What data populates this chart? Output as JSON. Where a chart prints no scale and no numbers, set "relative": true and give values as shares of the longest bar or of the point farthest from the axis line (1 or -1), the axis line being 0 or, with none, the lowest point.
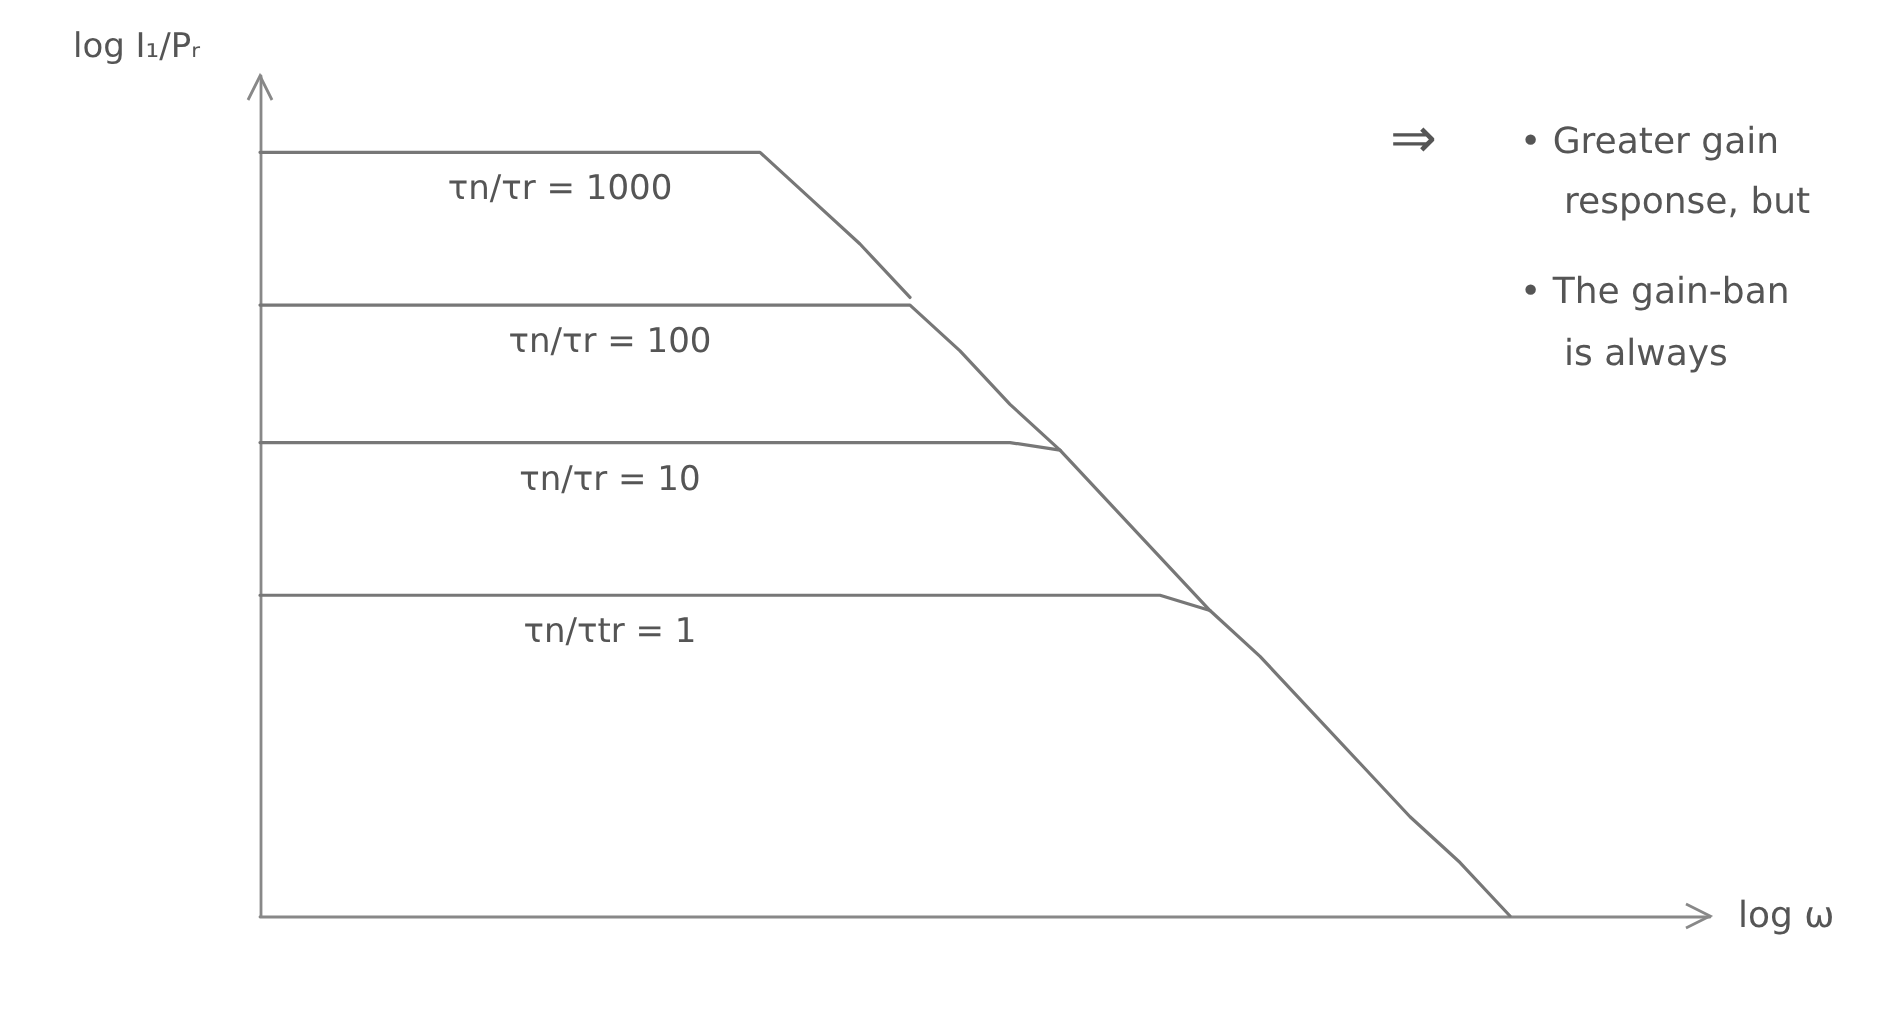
{
  "chart_data": {
    "type": "line",
    "relative": true,
    "xlabel": "log ω",
    "ylabel": "log I₁/Pᵣ",
    "categories": [
      null,
      null,
      null,
      null,
      null,
      null,
      null,
      null,
      null,
      null,
      null,
      null,
      null,
      null,
      null,
      null,
      null,
      null,
      null,
      null,
      null,
      null,
      null,
      null,
      null,
      null,
      null,
      null,
      null,
      null
    ],
    "series": [
      {
        "name": "τn/τr = 1000",
        "color": "#777777",
        "values": [
          1.0,
          1.0,
          1.0,
          1.0,
          1.0,
          1.0,
          1.0,
          1.0,
          1.0,
          1.0,
          1.0,
          0.94,
          0.88,
          0.81,
          null,
          null,
          null,
          null,
          null,
          null,
          null,
          null,
          null,
          null,
          null,
          null,
          null,
          null,
          null,
          null
        ]
      },
      {
        "name": "τn/τr = 100",
        "color": "#777777",
        "values": [
          0.8,
          0.8,
          0.8,
          0.8,
          0.8,
          0.8,
          0.8,
          0.8,
          0.8,
          0.8,
          0.8,
          0.8,
          0.8,
          0.8,
          0.74,
          0.67,
          0.61,
          null,
          null,
          null,
          null,
          null,
          null,
          null,
          null,
          null,
          null,
          null,
          null,
          null
        ]
      },
      {
        "name": "τn/τr = 10",
        "color": "#777777",
        "values": [
          0.62,
          0.62,
          0.62,
          0.62,
          0.62,
          0.62,
          0.62,
          0.62,
          0.62,
          0.62,
          0.62,
          0.62,
          0.62,
          0.62,
          0.62,
          0.62,
          0.61,
          0.54,
          0.47,
          0.4,
          null,
          null,
          null,
          null,
          null,
          null,
          null,
          null,
          null,
          null
        ]
      },
      {
        "name": "τn/τtr = 1",
        "color": "#777777",
        "values": [
          0.42,
          0.42,
          0.42,
          0.42,
          0.42,
          0.42,
          0.42,
          0.42,
          0.42,
          0.42,
          0.42,
          0.42,
          0.42,
          0.42,
          0.42,
          0.42,
          0.42,
          0.42,
          0.42,
          0.4,
          0.34,
          0.27,
          0.2,
          0.13,
          0.07,
          0.0,
          null,
          null,
          null,
          null
        ]
      }
    ],
    "marker": "none",
    "line_style": "solid",
    "grid": false,
    "legend": false,
    "annotations": [
      "⇒",
      "• Greater gain",
      "response, but",
      "• The gain-ban",
      "is always"
    ]
  }
}
